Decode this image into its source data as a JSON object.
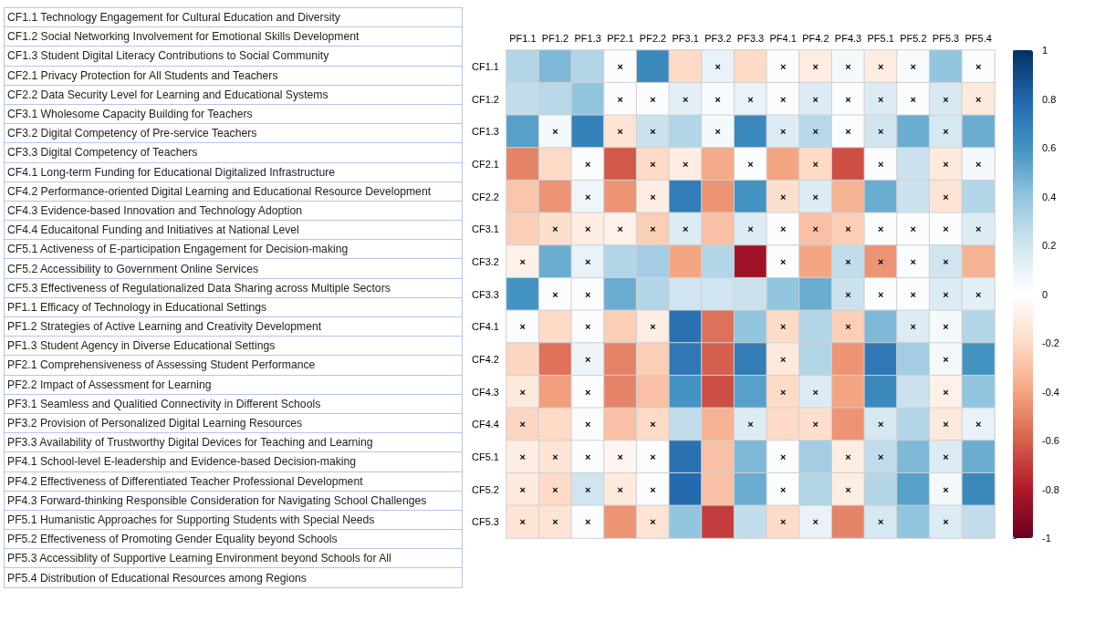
{
  "chart_data": {
    "type": "heatmap",
    "categories": [
      "PF1.1",
      "PF1.2",
      "PF1.3",
      "PF2.1",
      "PF2.2",
      "PF3.1",
      "PF3.2",
      "PF3.3",
      "PF4.1",
      "PF4.2",
      "PF4.3",
      "PF5.1",
      "PF5.2",
      "PF5.3",
      "PF5.4"
    ],
    "y_categories": [
      "CF1.1",
      "CF1.2",
      "CF1.3",
      "CF2.1",
      "CF2.2",
      "CF3.1",
      "CF3.2",
      "CF3.3",
      "CF4.1",
      "CF4.2",
      "CF4.3",
      "CF4.4",
      "CF5.1",
      "CF5.2",
      "CF5.3"
    ],
    "cells": [
      [
        0.3,
        0.45,
        0.3,
        0.02,
        0.65,
        -0.2,
        0.1,
        -0.2,
        0.02,
        -0.1,
        0.05,
        -0.1,
        0.03,
        0.4,
        0.02
      ],
      [
        0.25,
        0.28,
        0.4,
        0.02,
        0.02,
        0.12,
        0.03,
        0.1,
        0.02,
        0.15,
        0.02,
        0.15,
        0.02,
        0.17,
        -0.12
      ],
      [
        0.55,
        0.05,
        0.68,
        -0.15,
        0.22,
        0.3,
        0.05,
        0.65,
        0.15,
        0.28,
        0.02,
        0.2,
        0.5,
        0.18,
        0.5
      ],
      [
        -0.5,
        -0.2,
        0.02,
        -0.62,
        -0.2,
        -0.1,
        -0.38,
        0.02,
        -0.4,
        -0.2,
        -0.65,
        0.02,
        0.22,
        -0.12,
        0.05
      ],
      [
        -0.28,
        -0.45,
        0.07,
        -0.45,
        -0.1,
        0.7,
        -0.45,
        0.6,
        -0.18,
        0.15,
        -0.35,
        0.5,
        0.22,
        -0.15,
        0.3
      ],
      [
        -0.25,
        -0.18,
        -0.1,
        -0.07,
        -0.25,
        0.15,
        -0.3,
        0.15,
        0.02,
        -0.3,
        -0.25,
        0.02,
        0.02,
        0.02,
        0.15
      ],
      [
        -0.08,
        0.5,
        0.1,
        0.3,
        0.35,
        -0.4,
        0.3,
        -0.85,
        0.02,
        -0.4,
        0.25,
        -0.45,
        0.02,
        0.2,
        -0.35
      ],
      [
        0.6,
        0.02,
        0.02,
        0.5,
        0.3,
        0.2,
        0.2,
        0.22,
        0.4,
        0.5,
        0.22,
        0.02,
        0.02,
        0.15,
        0.12
      ],
      [
        0.02,
        -0.2,
        0.02,
        -0.25,
        -0.1,
        0.75,
        -0.55,
        0.4,
        -0.2,
        0.3,
        -0.25,
        0.45,
        0.15,
        0.05,
        0.3
      ],
      [
        -0.22,
        -0.55,
        0.08,
        -0.5,
        -0.25,
        0.72,
        -0.6,
        0.7,
        -0.12,
        0.3,
        -0.45,
        0.72,
        0.35,
        0.05,
        0.6
      ],
      [
        -0.12,
        -0.42,
        0.02,
        -0.5,
        -0.3,
        0.6,
        -0.65,
        0.55,
        -0.2,
        0.15,
        -0.4,
        0.65,
        0.22,
        -0.08,
        0.4
      ],
      [
        -0.22,
        -0.2,
        0.02,
        -0.3,
        -0.2,
        0.25,
        -0.35,
        0.15,
        -0.2,
        -0.18,
        -0.45,
        0.18,
        0.3,
        -0.12,
        0.1
      ],
      [
        -0.1,
        -0.15,
        0.02,
        -0.05,
        0.02,
        0.75,
        -0.3,
        0.45,
        0.02,
        0.35,
        -0.1,
        0.25,
        0.45,
        0.15,
        0.5
      ],
      [
        -0.12,
        -0.2,
        0.2,
        -0.12,
        0.02,
        0.78,
        -0.3,
        0.5,
        0.02,
        0.3,
        -0.1,
        0.3,
        0.55,
        0.05,
        0.65
      ],
      [
        -0.15,
        -0.15,
        0.02,
        -0.45,
        -0.15,
        0.4,
        -0.7,
        0.25,
        -0.2,
        0.1,
        -0.5,
        0.18,
        0.4,
        0.15,
        0.25
      ]
    ],
    "cell_labels": [
      [
        null,
        null,
        null,
        "×",
        null,
        null,
        "×",
        null,
        "×",
        "×",
        "×",
        "×",
        "×",
        null,
        "×"
      ],
      [
        null,
        null,
        null,
        "×",
        "×",
        "×",
        "×",
        "×",
        "×",
        "×",
        "×",
        "×",
        "×",
        "×",
        "×"
      ],
      [
        null,
        "×",
        null,
        "×",
        "×",
        null,
        "×",
        null,
        "×",
        "×",
        "×",
        "×",
        null,
        "×",
        null
      ],
      [
        null,
        null,
        "×",
        null,
        "×",
        "×",
        null,
        "×",
        null,
        "×",
        null,
        "×",
        null,
        "×",
        "×"
      ],
      [
        null,
        null,
        "×",
        null,
        "×",
        null,
        null,
        null,
        "×",
        "×",
        null,
        null,
        null,
        "×",
        null
      ],
      [
        null,
        "×",
        "×",
        "×",
        "×",
        "×",
        null,
        "×",
        "×",
        "×",
        "×",
        "×",
        "×",
        "×",
        "×"
      ],
      [
        "×",
        null,
        "×",
        null,
        null,
        null,
        null,
        null,
        "×",
        null,
        "×",
        "×",
        "×",
        "×",
        null
      ],
      [
        null,
        "×",
        "×",
        null,
        null,
        null,
        null,
        null,
        null,
        null,
        "×",
        "×",
        "×",
        "×",
        "×"
      ],
      [
        "×",
        null,
        "×",
        null,
        "×",
        null,
        null,
        null,
        "×",
        null,
        "×",
        null,
        "×",
        "×",
        null
      ],
      [
        null,
        null,
        "×",
        null,
        null,
        null,
        null,
        null,
        "×",
        null,
        null,
        null,
        null,
        "×",
        null
      ],
      [
        "×",
        null,
        "×",
        null,
        null,
        null,
        null,
        null,
        "×",
        "×",
        null,
        null,
        null,
        "×",
        null
      ],
      [
        "×",
        null,
        "×",
        null,
        "×",
        null,
        null,
        "×",
        null,
        "×",
        null,
        "×",
        null,
        "×",
        "×"
      ],
      [
        "×",
        "×",
        "×",
        "×",
        "×",
        null,
        null,
        null,
        "×",
        null,
        "×",
        "×",
        null,
        "×",
        null
      ],
      [
        "×",
        "×",
        "×",
        "×",
        "×",
        null,
        null,
        null,
        "×",
        null,
        "×",
        null,
        null,
        "×",
        null
      ],
      [
        "×",
        "×",
        "×",
        null,
        "×",
        null,
        null,
        null,
        "×",
        "×",
        null,
        "×",
        null,
        "×",
        null
      ]
    ],
    "clim": [
      -1,
      1
    ],
    "cticks": [
      -1,
      -0.8,
      -0.6,
      -0.4,
      -0.2,
      0,
      0.2,
      0.4,
      0.6,
      0.8,
      1
    ],
    "annotations": [
      "CF1.1 Technology Engagement for Cultural Education and Diversity",
      "CF1.2 Social Networking Involvement for Emotional Skills Development",
      "CF1.3 Student Digital Literacy Contributions to Social Community",
      "CF2.1 Privacy Protection for All Students and Teachers",
      "CF2.2 Data Security Level for Learning and Educational Systems",
      "CF3.1 Wholesome Capacity Building for Teachers",
      "CF3.2 Digital Competency of Pre-service Teachers",
      "CF3.3 Digital Competency of Teachers",
      "CF4.1 Long-term Funding for Educational Digitalized Infrastructure",
      "CF4.2 Performance-oriented Digital Learning and Educational Resource Development",
      "CF4.3 Evidence-based Innovation and Technology Adoption",
      "CF4.4 Educaitonal Funding and Initiatives at National Level",
      "CF5.1 Activeness of E-participation Engagement for Decision-making",
      "CF5.2 Accessibility to Government Online Services",
      "CF5.3 Effectiveness of Regulationalized Data Sharing across Multiple Sectors",
      "PF1.1 Efficacy of Technology in Educational Settings",
      "PF1.2 Strategies of Active Learning and Creativity Development",
      "PF1.3 Student Agency in Diverse Educational Settings",
      "PF2.1 Comprehensiveness of Assessing Student Performance",
      "PF2.2 Impact of Assessment for Learning",
      "PF3.1 Seamless and Qualitied Connectivity in Different Schools",
      "PF3.2 Provision of Personalized Digital Learning Resources",
      "PF3.3 Availability of Trustworthy Digital Devices for Teaching and Learning",
      "PF4.1 School-level E-leadership and Evidence-based Decision-making",
      "PF4.2 Effectiveness of Differentiated Teacher Professional Development",
      "PF4.3 Forward-thinking Responsible Consideration for Navigating School Challenges",
      "PF5.1 Humanistic Approaches for Supporting Students with Special Needs",
      "PF5.2 Effectiveness of Promoting Gender Equality beyond Schools",
      "PF5.3 Accessiblity of Supportive Learning Environment beyond Schools for All",
      "PF5.4 Distribution of Educational Resources among Regions"
    ]
  }
}
